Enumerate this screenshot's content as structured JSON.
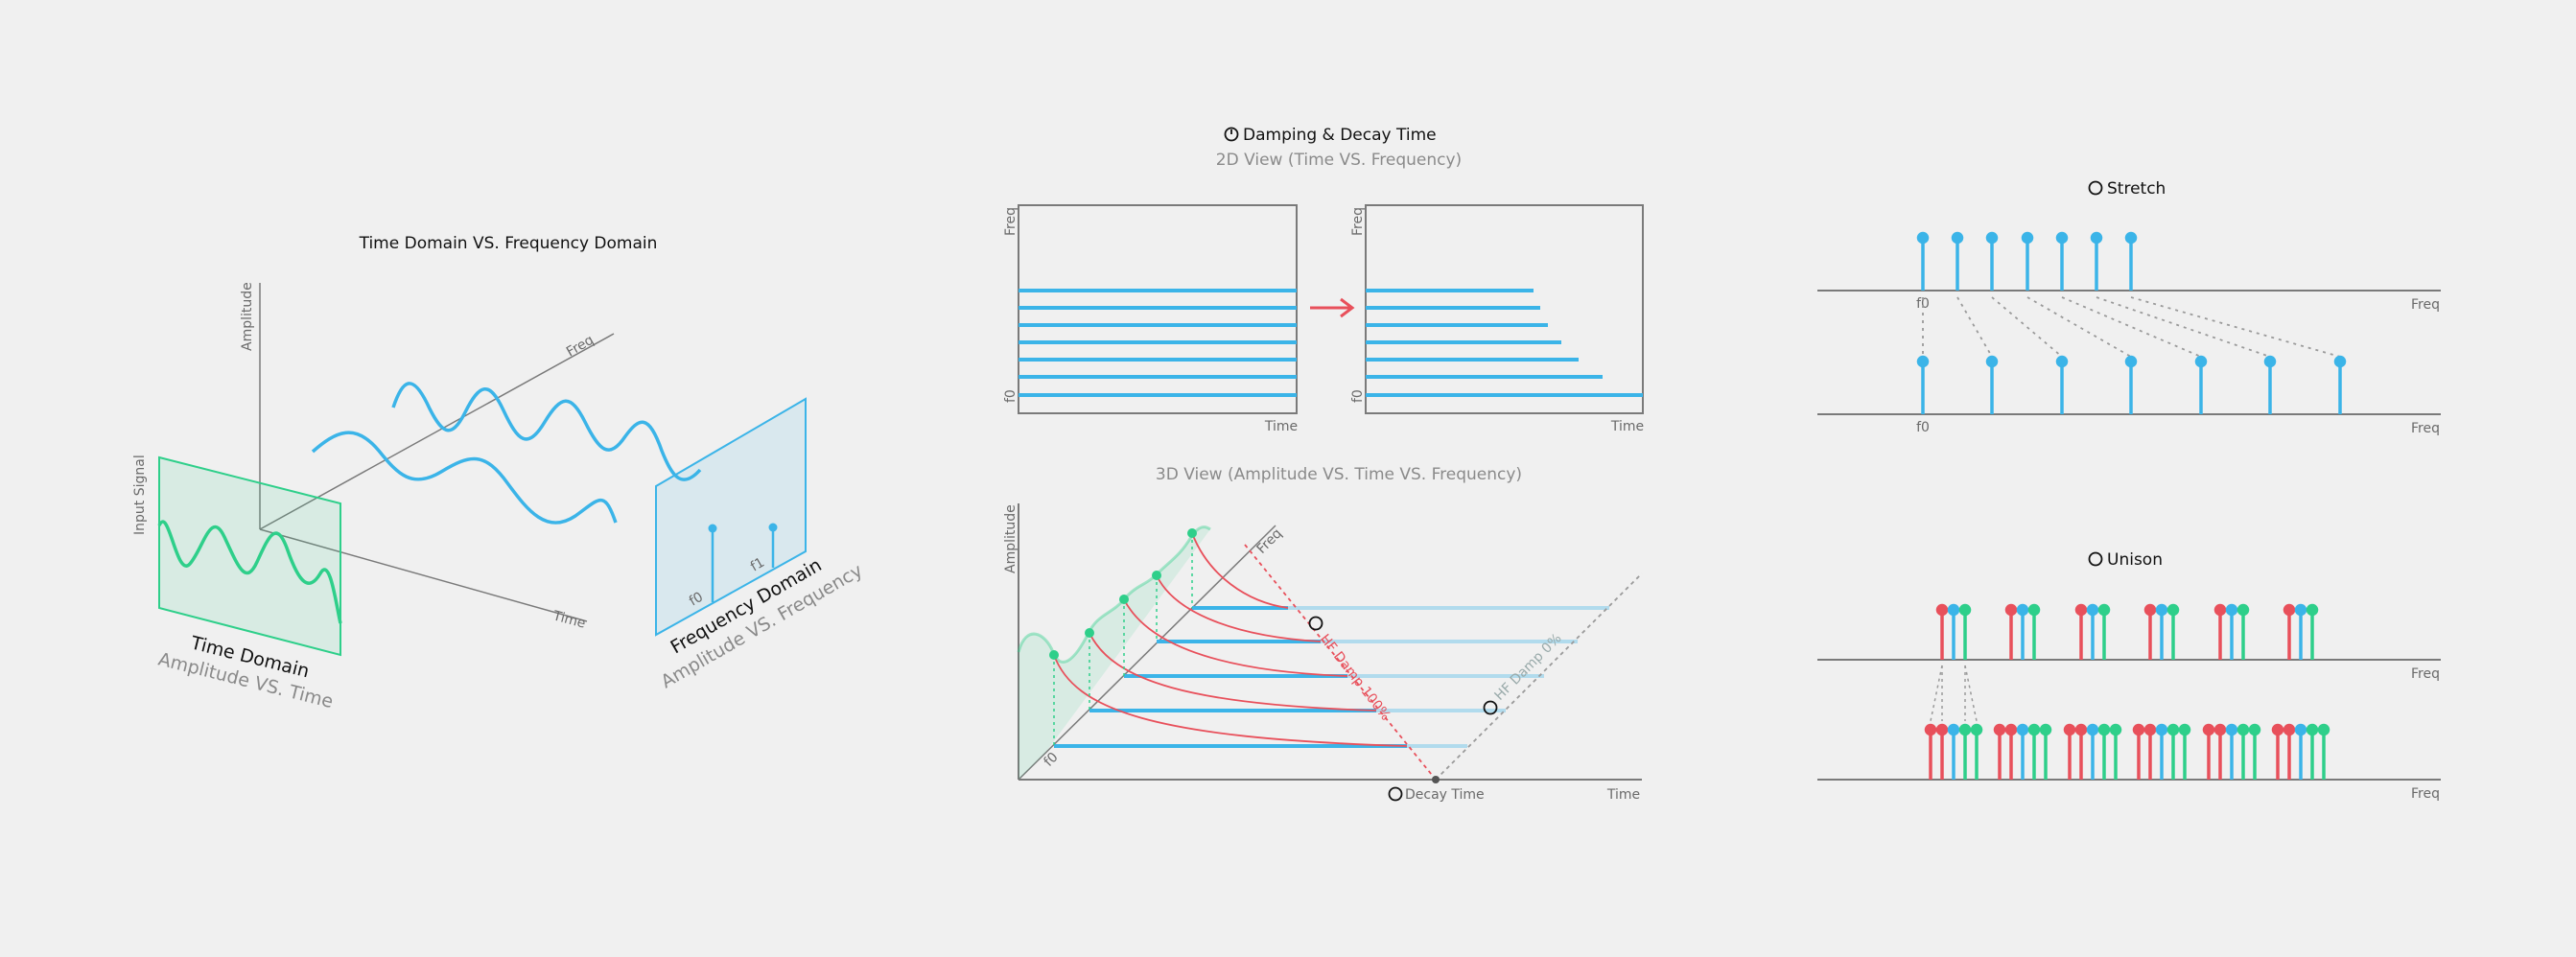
{
  "colors": {
    "blue": "#3bb4e8",
    "green": "#2ecf8a",
    "red": "#e8505b",
    "axis": "#7a7a7a",
    "dotted": "#9a9a9a"
  },
  "left": {
    "title": "Time Domain VS. Frequency Domain",
    "axis_amplitude": "Amplitude",
    "axis_freq": "Freq",
    "axis_time": "Time",
    "input_signal": "Input Signal",
    "time_domain": "Time Domain",
    "time_domain_sub": "Amplitude VS. Time",
    "freq_domain": "Frequency Domain",
    "freq_domain_sub": "Amplitude VS. Frequency",
    "f0": "f0",
    "f1": "f1"
  },
  "middle": {
    "title": "Damping & Decay Time",
    "title_icon": "clock-icon",
    "view2d_subtitle": "2D View (Time VS. Frequency)",
    "freq_label": "Freq",
    "time_label": "Time",
    "f0": "f0",
    "view3d_subtitle": "3D View (Amplitude VS. Time VS. Frequency)",
    "amplitude_label": "Amplitude",
    "hf_damp_100": "HF Damp 100%",
    "hf_damp_0": "HF Damp 0%",
    "decay_time": "Decay Time"
  },
  "right": {
    "stretch_title": "Stretch",
    "unison_title": "Unison",
    "freq_label": "Freq",
    "f0": "f0"
  }
}
